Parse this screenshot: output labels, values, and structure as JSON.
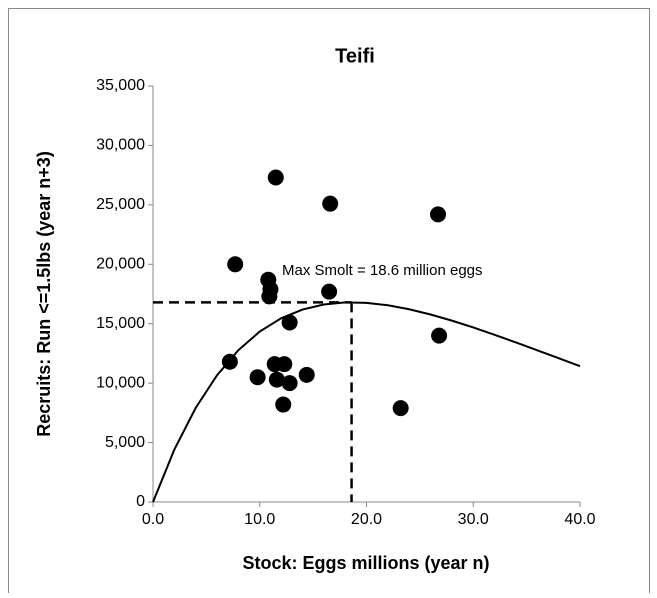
{
  "chart_data": {
    "type": "scatter",
    "title": "Teifi",
    "x_label": "Stock: Eggs millions  (year  n)",
    "y_label": "Recruits:  Run <=1.5lbs  (year n+3)",
    "annotation": "Max Smolt = 18.6 million eggs",
    "xlim": [
      0,
      40
    ],
    "ylim": [
      0,
      35000
    ],
    "xticks": [
      {
        "value": 0,
        "label": "0.0"
      },
      {
        "value": 10,
        "label": "10.0"
      },
      {
        "value": 20,
        "label": "20.0"
      },
      {
        "value": 30,
        "label": "30.0"
      },
      {
        "value": 40,
        "label": "40.0"
      }
    ],
    "yticks": [
      0,
      {
        "value": 5000,
        "label": "5,000"
      },
      {
        "value": 10000,
        "label": "10,000"
      },
      {
        "value": 15000,
        "label": "15,000"
      },
      {
        "value": 20000,
        "label": "20,000"
      },
      {
        "value": 25000,
        "label": "25,000"
      },
      {
        "value": 30000,
        "label": "30,000"
      },
      {
        "value": 35000,
        "label": "35,000"
      }
    ],
    "grid": false,
    "series": [
      {
        "type": "scatter",
        "color": "#000000",
        "x": [
          7.7,
          11.5,
          16.6,
          26.7,
          10.8,
          11.0,
          10.9,
          16.5,
          12.8,
          7.2,
          11.4,
          12.3,
          9.8,
          11.6,
          12.8,
          14.4,
          12.2,
          23.2,
          26.8
        ],
        "values": [
          20000,
          27300,
          25100,
          24200,
          18700,
          17900,
          17300,
          17700,
          15100,
          11800,
          11600,
          11600,
          10500,
          10300,
          10000,
          10700,
          8200,
          7900,
          14000
        ]
      },
      {
        "type": "line",
        "color": "#000000",
        "x": [
          0,
          2,
          4,
          6,
          8,
          10,
          12,
          14,
          16,
          18,
          20,
          22,
          24,
          26,
          28,
          30,
          32,
          34,
          36,
          38,
          40
        ],
        "values": [
          0,
          4410,
          7920,
          10670,
          12776,
          14342,
          15455,
          16193,
          16619,
          16792,
          16757,
          16554,
          16216,
          15776,
          15261,
          14686,
          14062,
          13422,
          12762,
          12100,
          11430
        ]
      }
    ],
    "reference": {
      "x": 18.6,
      "y": 16800
    }
  }
}
